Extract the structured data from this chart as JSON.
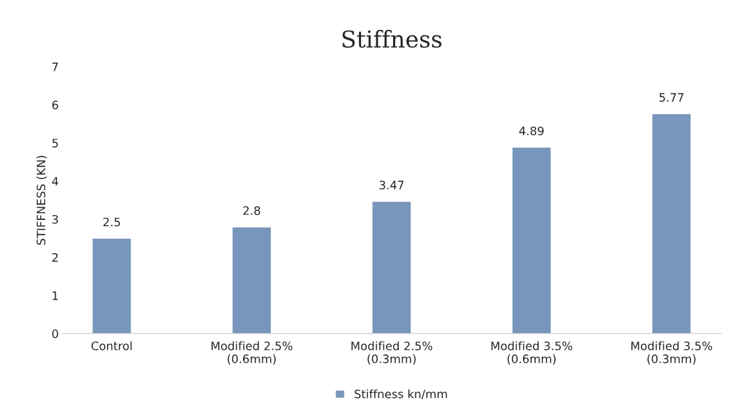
{
  "chart_data": {
    "type": "bar",
    "title": "Stiffness",
    "ylabel": "STIFFNESS (KN)",
    "categories": [
      "Control",
      "Modified 2.5%\n(0.6mm)",
      "Modified 2.5%\n(0.3mm)",
      "Modified 3.5%\n(0.6mm)",
      "Modified 3.5%\n(0.3mm)"
    ],
    "series": [
      {
        "name": "Stiffness kn/mm",
        "color": "#7896bb",
        "values": [
          2.5,
          2.8,
          3.47,
          4.89,
          5.77
        ]
      }
    ],
    "ylim": [
      0,
      7
    ],
    "yticks": [
      0,
      1,
      2,
      3,
      4,
      5,
      6,
      7
    ],
    "data_labels": true,
    "legend": "bottom",
    "grid": false
  }
}
